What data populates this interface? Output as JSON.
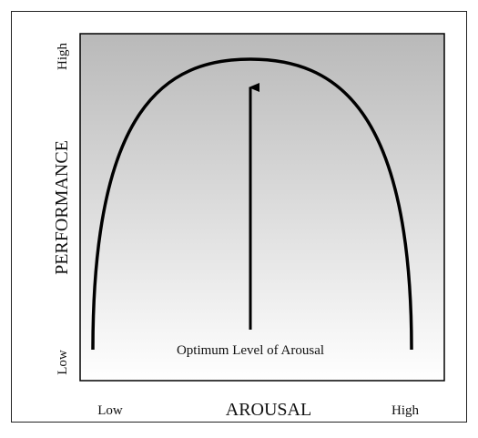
{
  "y_axis": {
    "label": "PERFORMANCE",
    "high": "High",
    "low": "Low"
  },
  "x_axis": {
    "label": "AROUSAL",
    "low": "Low",
    "high": "High"
  },
  "annotation": "Optimum Level of Arousal"
}
